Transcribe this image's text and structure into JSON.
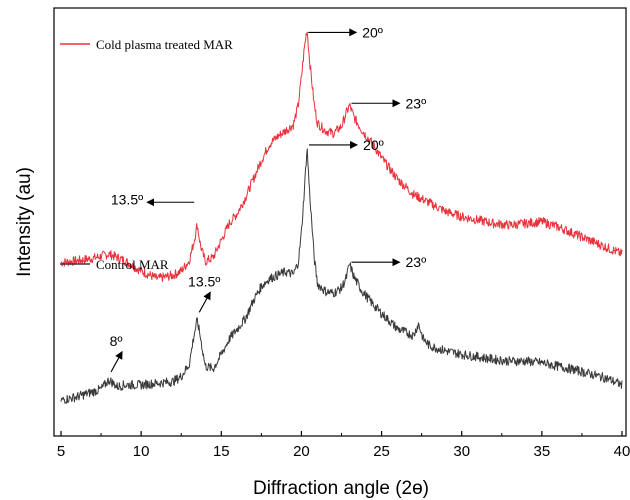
{
  "chart_data": {
    "type": "line",
    "xlabel": "Diffraction angle (2ɵ)",
    "ylabel": "Intensity (au)",
    "xlim": [
      5,
      40
    ],
    "xticks": [
      5,
      10,
      15,
      20,
      25,
      30,
      35,
      40
    ],
    "yticks_shown": false,
    "legend_placement": "inline-left",
    "series": [
      {
        "name": "Cold plasma treated MAR",
        "color": "#e8323c",
        "x": [
          5,
          6,
          7,
          8,
          9,
          10,
          11,
          12,
          12.5,
          13,
          13.3,
          13.5,
          13.7,
          14,
          14.5,
          15,
          15.5,
          16,
          16.5,
          17,
          17.5,
          18,
          18.5,
          19,
          19.5,
          19.8,
          20,
          20.2,
          20.35,
          20.5,
          20.8,
          21,
          21.5,
          22,
          22.5,
          22.8,
          23,
          23.3,
          23.8,
          24.5,
          25,
          26,
          27,
          28,
          29,
          30,
          31,
          32,
          33,
          34,
          35,
          36,
          37,
          38,
          39,
          40
        ],
        "values": [
          17.0,
          17.2,
          17.5,
          18.0,
          17.2,
          16.0,
          15.1,
          15.5,
          16.0,
          17.2,
          19.5,
          21.5,
          19.0,
          17.1,
          17.6,
          19.6,
          21.6,
          22.8,
          24.6,
          26.8,
          29.0,
          30.9,
          31.8,
          32.5,
          33.2,
          35.5,
          38.8,
          42.5,
          44.5,
          41.0,
          35.5,
          33.4,
          32.5,
          32.2,
          33.0,
          34.6,
          35.5,
          34.0,
          32.5,
          30.8,
          29.3,
          26.8,
          25.0,
          24.0,
          23.0,
          22.4,
          22.0,
          21.6,
          21.4,
          21.6,
          21.8,
          21.2,
          20.4,
          19.6,
          18.8,
          18.0
        ]
      },
      {
        "name": "Control MAR",
        "color": "#3a3a3a",
        "x": [
          5,
          6,
          7,
          7.5,
          8,
          8.5,
          9,
          10,
          11,
          12,
          12.5,
          13,
          13.3,
          13.5,
          13.7,
          14,
          14.5,
          15,
          15.5,
          16,
          16.5,
          17,
          17.5,
          18,
          18.5,
          19,
          19.5,
          19.8,
          20,
          20.2,
          20.35,
          20.5,
          20.8,
          21,
          21.5,
          22,
          22.5,
          22.8,
          23,
          23.3,
          23.8,
          24.5,
          25,
          26,
          27,
          27.3,
          27.6,
          28,
          29,
          30,
          31,
          32,
          33,
          34,
          35,
          36,
          37,
          38,
          39,
          40
        ],
        "values": [
          0.8,
          1.2,
          1.8,
          2.1,
          3.2,
          2.4,
          2.6,
          2.6,
          2.8,
          3.0,
          3.6,
          5.0,
          8.5,
          10.2,
          8.2,
          4.8,
          4.5,
          6.2,
          8.0,
          9.2,
          10.4,
          12.5,
          14.2,
          15.1,
          15.5,
          15.9,
          15.6,
          17.0,
          20.5,
          26.0,
          30.6,
          25.5,
          17.5,
          14.5,
          13.6,
          13.4,
          14.0,
          15.2,
          16.8,
          15.2,
          13.6,
          12.0,
          11.0,
          9.2,
          8.4,
          9.8,
          8.0,
          7.2,
          6.6,
          6.2,
          5.9,
          5.6,
          5.4,
          5.4,
          5.2,
          4.8,
          4.4,
          3.9,
          3.4,
          2.6
        ]
      }
    ],
    "annotations": [
      {
        "text": "20º",
        "series": 0,
        "x": 20.3,
        "arrow": "right"
      },
      {
        "text": "23º",
        "series": 0,
        "x": 23.0,
        "arrow": "right"
      },
      {
        "text": "13.5º",
        "series": 0,
        "x": 13.5,
        "arrow": "left"
      },
      {
        "text": "20º",
        "series": 1,
        "x": 20.35,
        "arrow": "right"
      },
      {
        "text": "23º",
        "series": 1,
        "x": 23.0,
        "arrow": "right"
      },
      {
        "text": "13.5º",
        "series": 1,
        "x": 13.5,
        "arrow": "up-right"
      },
      {
        "text": "8º",
        "series": 1,
        "x": 8.0,
        "arrow": "up-right"
      }
    ]
  }
}
